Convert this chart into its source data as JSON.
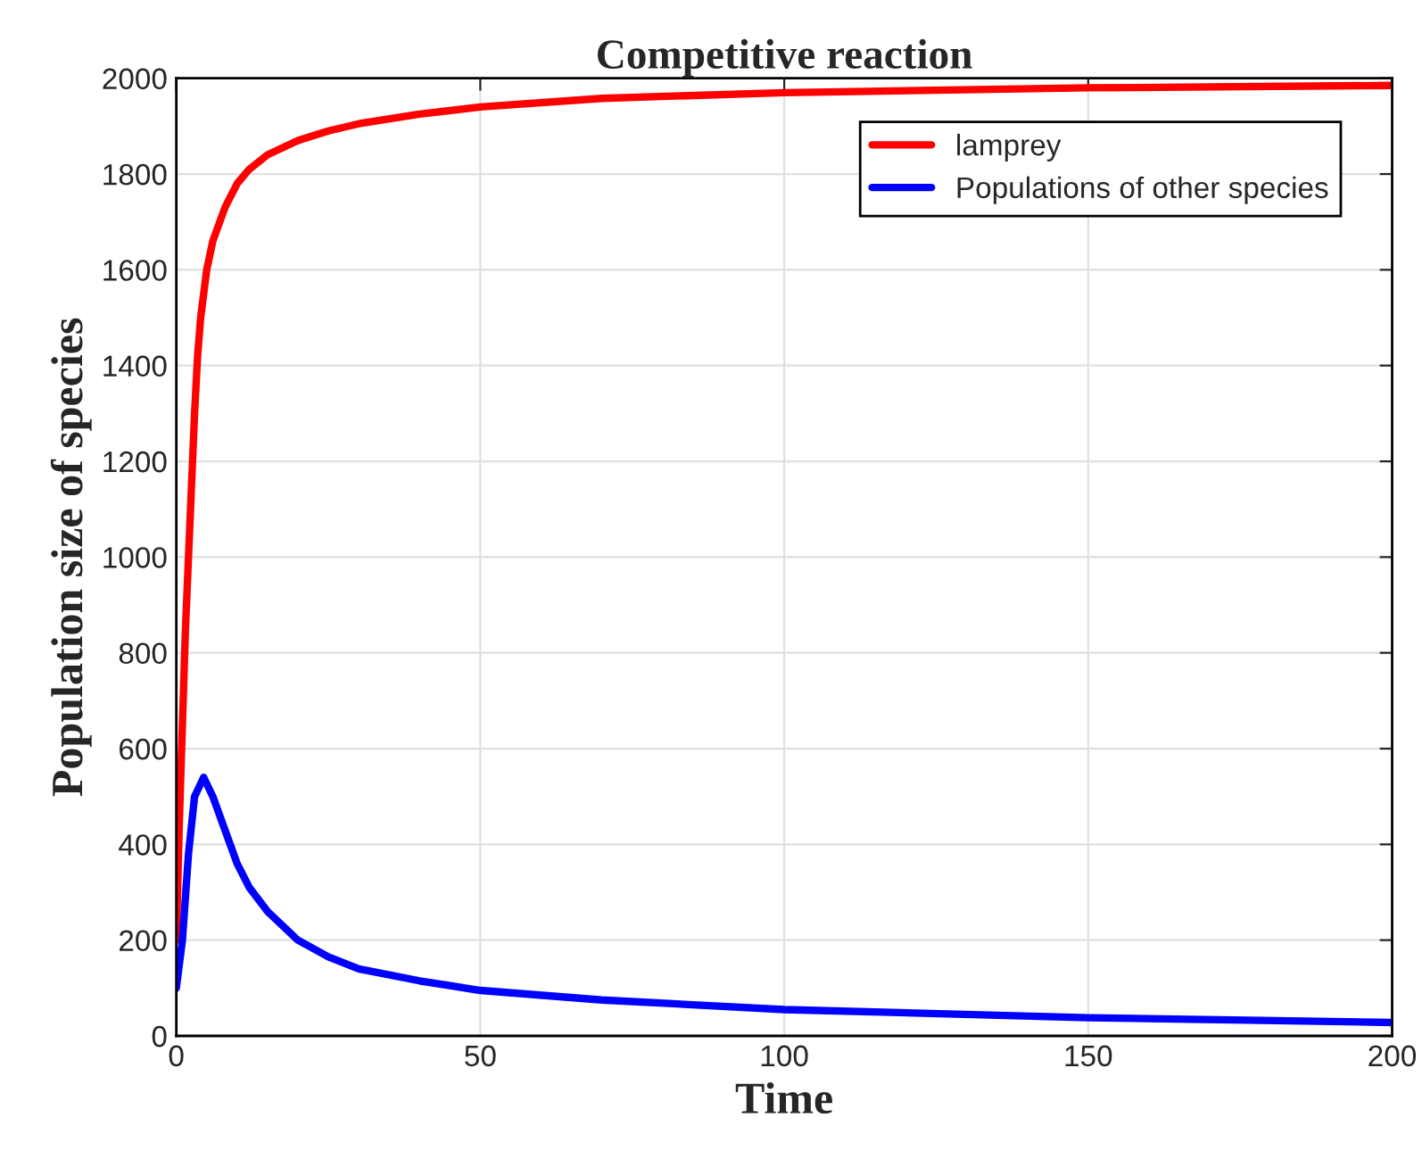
{
  "chart_data": {
    "type": "line",
    "title": "Competitive reaction",
    "xlabel": "Time",
    "ylabel": "Population size of species",
    "xlim": [
      0,
      200
    ],
    "xticks": [
      0,
      50,
      100,
      150,
      200
    ],
    "ylim": [
      0,
      2000
    ],
    "yticks": [
      0,
      200,
      400,
      600,
      800,
      1000,
      1200,
      1400,
      1600,
      1800,
      2000
    ],
    "grid": true,
    "legend": "top right",
    "line_style": "solid",
    "series": [
      {
        "name": "lamprey",
        "color": "#ff0000",
        "x": [
          0,
          0.5,
          1,
          1.5,
          2,
          2.5,
          3,
          3.5,
          4,
          5,
          6,
          8,
          10,
          12,
          15,
          20,
          25,
          30,
          40,
          50,
          70,
          100,
          150,
          200
        ],
        "values": [
          200,
          450,
          650,
          850,
          1000,
          1150,
          1300,
          1420,
          1500,
          1600,
          1660,
          1730,
          1780,
          1810,
          1840,
          1870,
          1890,
          1905,
          1925,
          1940,
          1958,
          1970,
          1980,
          1985
        ]
      },
      {
        "name": "Populations of other species",
        "color": "#0000ff",
        "x": [
          0,
          1,
          2,
          3,
          4.5,
          6,
          8,
          10,
          12,
          15,
          20,
          25,
          30,
          40,
          50,
          70,
          100,
          150,
          200
        ],
        "values": [
          100,
          200,
          380,
          500,
          540,
          500,
          430,
          360,
          310,
          260,
          200,
          165,
          140,
          115,
          95,
          75,
          55,
          38,
          28
        ]
      }
    ]
  }
}
